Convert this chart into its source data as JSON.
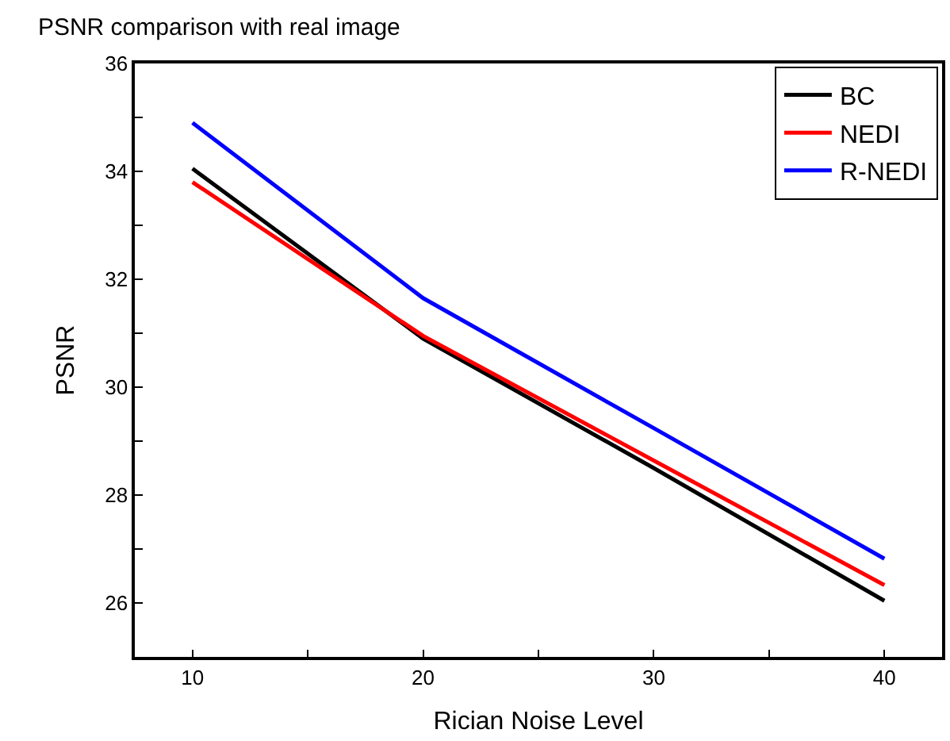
{
  "chart_data": {
    "type": "line",
    "title": "PSNR comparison with real image",
    "xlabel": "Rician Noise Level",
    "ylabel": "PSNR",
    "x": [
      10,
      20,
      30,
      40
    ],
    "series": [
      {
        "name": "BC",
        "color": "#000000",
        "values": [
          34.05,
          30.9,
          28.5,
          26.04
        ]
      },
      {
        "name": "NEDI",
        "color": "#ff0000",
        "values": [
          33.8,
          30.95,
          28.64,
          26.33
        ]
      },
      {
        "name": "R-NEDI",
        "color": "#0000ff",
        "values": [
          34.9,
          31.65,
          29.24,
          26.82
        ]
      }
    ],
    "xlim": [
      7.5,
      42.5
    ],
    "xticks": [
      10,
      {
        "value": 15,
        "label": null
      },
      20,
      {
        "value": 25,
        "label": null
      },
      30,
      {
        "value": 35,
        "label": null
      },
      40
    ],
    "ylim": [
      25,
      36
    ],
    "yticks": [
      {
        "value": 25,
        "label": null
      },
      26,
      {
        "value": 27,
        "label": null
      },
      28,
      {
        "value": 29,
        "label": null
      },
      30,
      {
        "value": 31,
        "label": null
      },
      32,
      {
        "value": 33,
        "label": null
      },
      34,
      {
        "value": 35,
        "label": null
      },
      36
    ],
    "legend": "top right",
    "marker": "none",
    "line_style": "solid"
  }
}
